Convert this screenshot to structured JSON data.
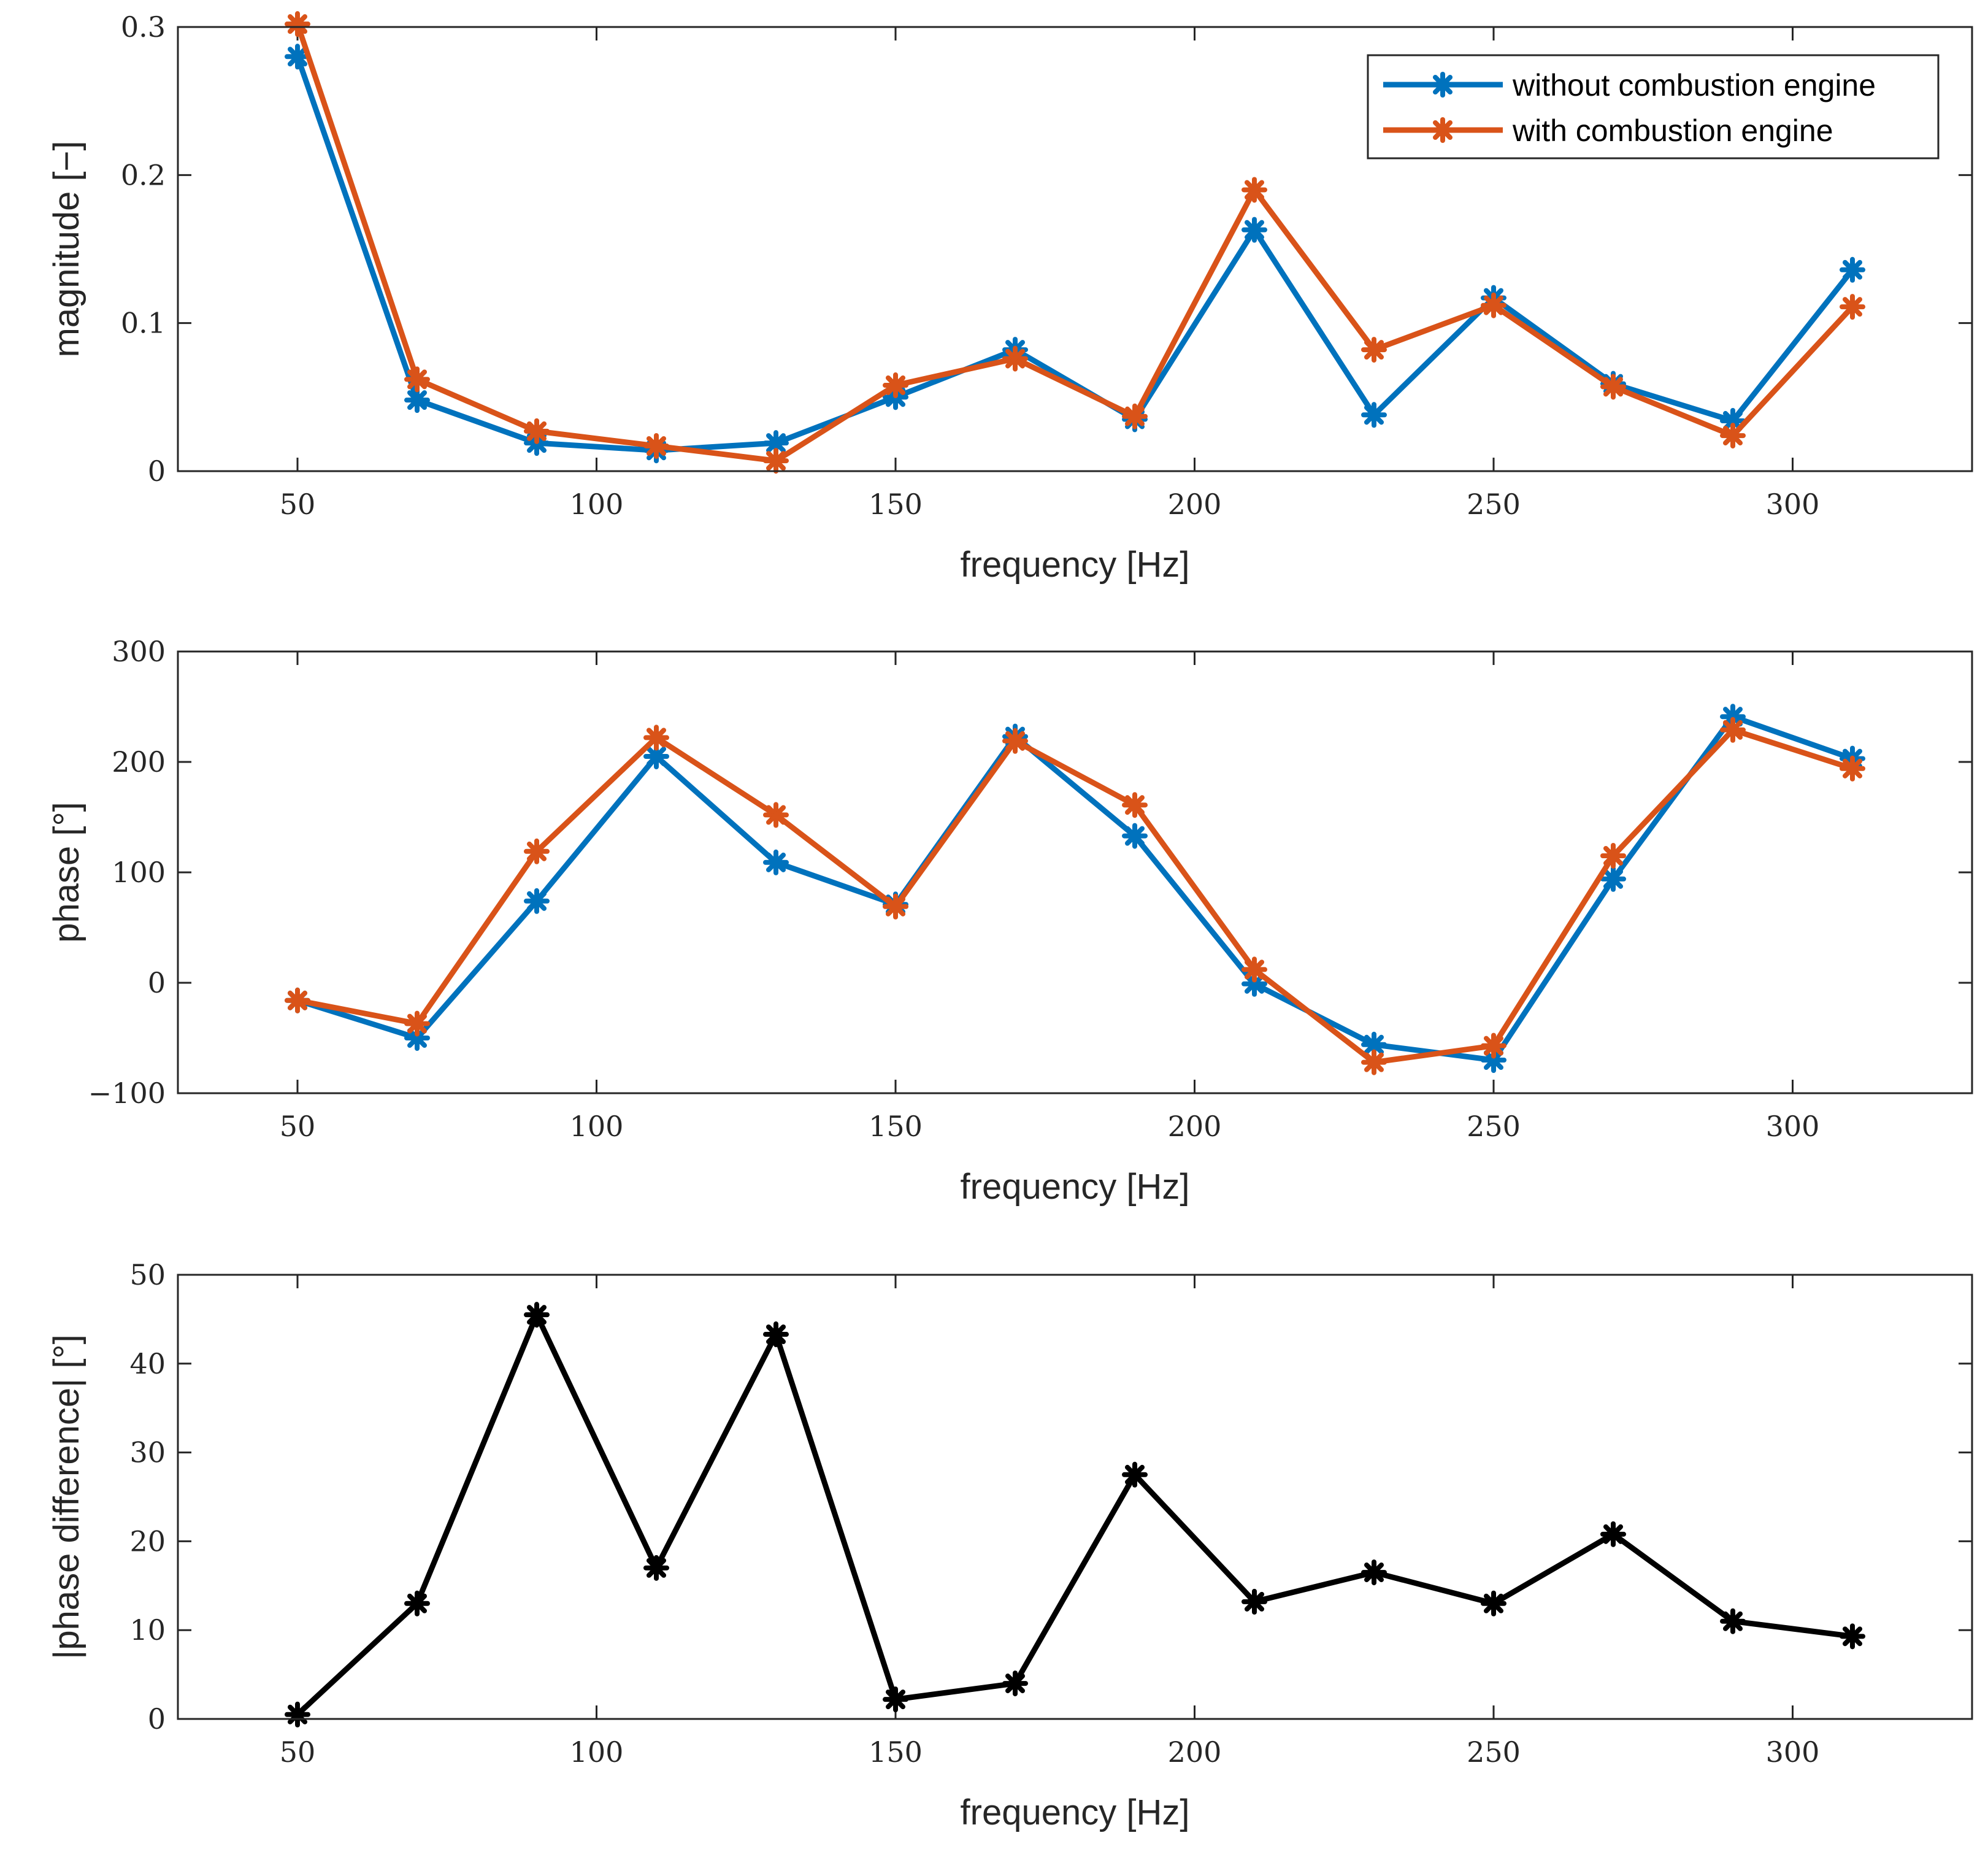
{
  "chart_data": [
    {
      "type": "line",
      "title": "",
      "xlabel": "frequency [Hz]",
      "ylabel": "magnitude [−]",
      "xlim": [
        30,
        330
      ],
      "ylim": [
        0,
        0.3
      ],
      "x_ticks": [
        "50",
        "100",
        "150",
        "200",
        "250",
        "300"
      ],
      "y_ticks": [
        "0",
        "0.1",
        "0.2",
        "0.3"
      ],
      "x": [
        50,
        70,
        90,
        110,
        130,
        150,
        170,
        190,
        210,
        230,
        250,
        270,
        290,
        310
      ],
      "legend_position": "top-right",
      "series": [
        {
          "name": "without combustion engine",
          "color": "#0072BD",
          "values": [
            0.28,
            0.048,
            0.019,
            0.014,
            0.019,
            0.05,
            0.082,
            0.035,
            0.163,
            0.038,
            0.117,
            0.059,
            0.034,
            0.136
          ]
        },
        {
          "name": "with combustion engine",
          "color": "#D95319",
          "values": [
            0.302,
            0.062,
            0.027,
            0.017,
            0.007,
            0.058,
            0.076,
            0.037,
            0.19,
            0.082,
            0.112,
            0.057,
            0.024,
            0.111
          ]
        }
      ]
    },
    {
      "type": "line",
      "title": "",
      "xlabel": "frequency [Hz]",
      "ylabel": "phase [°]",
      "xlim": [
        30,
        330
      ],
      "ylim": [
        -100,
        300
      ],
      "x_ticks": [
        "50",
        "100",
        "150",
        "200",
        "250",
        "300"
      ],
      "y_ticks": [
        "−100",
        "0",
        "100",
        "200",
        "300"
      ],
      "x": [
        50,
        70,
        90,
        110,
        130,
        150,
        170,
        190,
        210,
        230,
        250,
        270,
        290,
        310
      ],
      "series": [
        {
          "name": "without combustion engine",
          "color": "#0072BD",
          "values": [
            -16,
            -50,
            74,
            205,
            109,
            71,
            223,
            133,
            -1,
            -56,
            -70,
            94,
            241,
            203
          ]
        },
        {
          "name": "with combustion engine",
          "color": "#D95319",
          "values": [
            -16,
            -37,
            119,
            222,
            152,
            69,
            219,
            161,
            12,
            -72,
            -57,
            115,
            229,
            194
          ]
        }
      ]
    },
    {
      "type": "line",
      "title": "",
      "xlabel": "frequency [Hz]",
      "ylabel": "|phase difference| [°]",
      "xlim": [
        30,
        330
      ],
      "ylim": [
        0,
        50
      ],
      "x_ticks": [
        "50",
        "100",
        "150",
        "200",
        "250",
        "300"
      ],
      "y_ticks": [
        "0",
        "10",
        "20",
        "30",
        "40",
        "50"
      ],
      "x": [
        50,
        70,
        90,
        110,
        130,
        150,
        170,
        190,
        210,
        230,
        250,
        270,
        290,
        310
      ],
      "series": [
        {
          "name": "|phase difference|",
          "color": "#000000",
          "values": [
            0.5,
            13.0,
            45.5,
            17.0,
            43.3,
            2.2,
            4.0,
            27.5,
            13.2,
            16.5,
            13.0,
            20.8,
            11.0,
            9.3
          ]
        }
      ]
    }
  ]
}
